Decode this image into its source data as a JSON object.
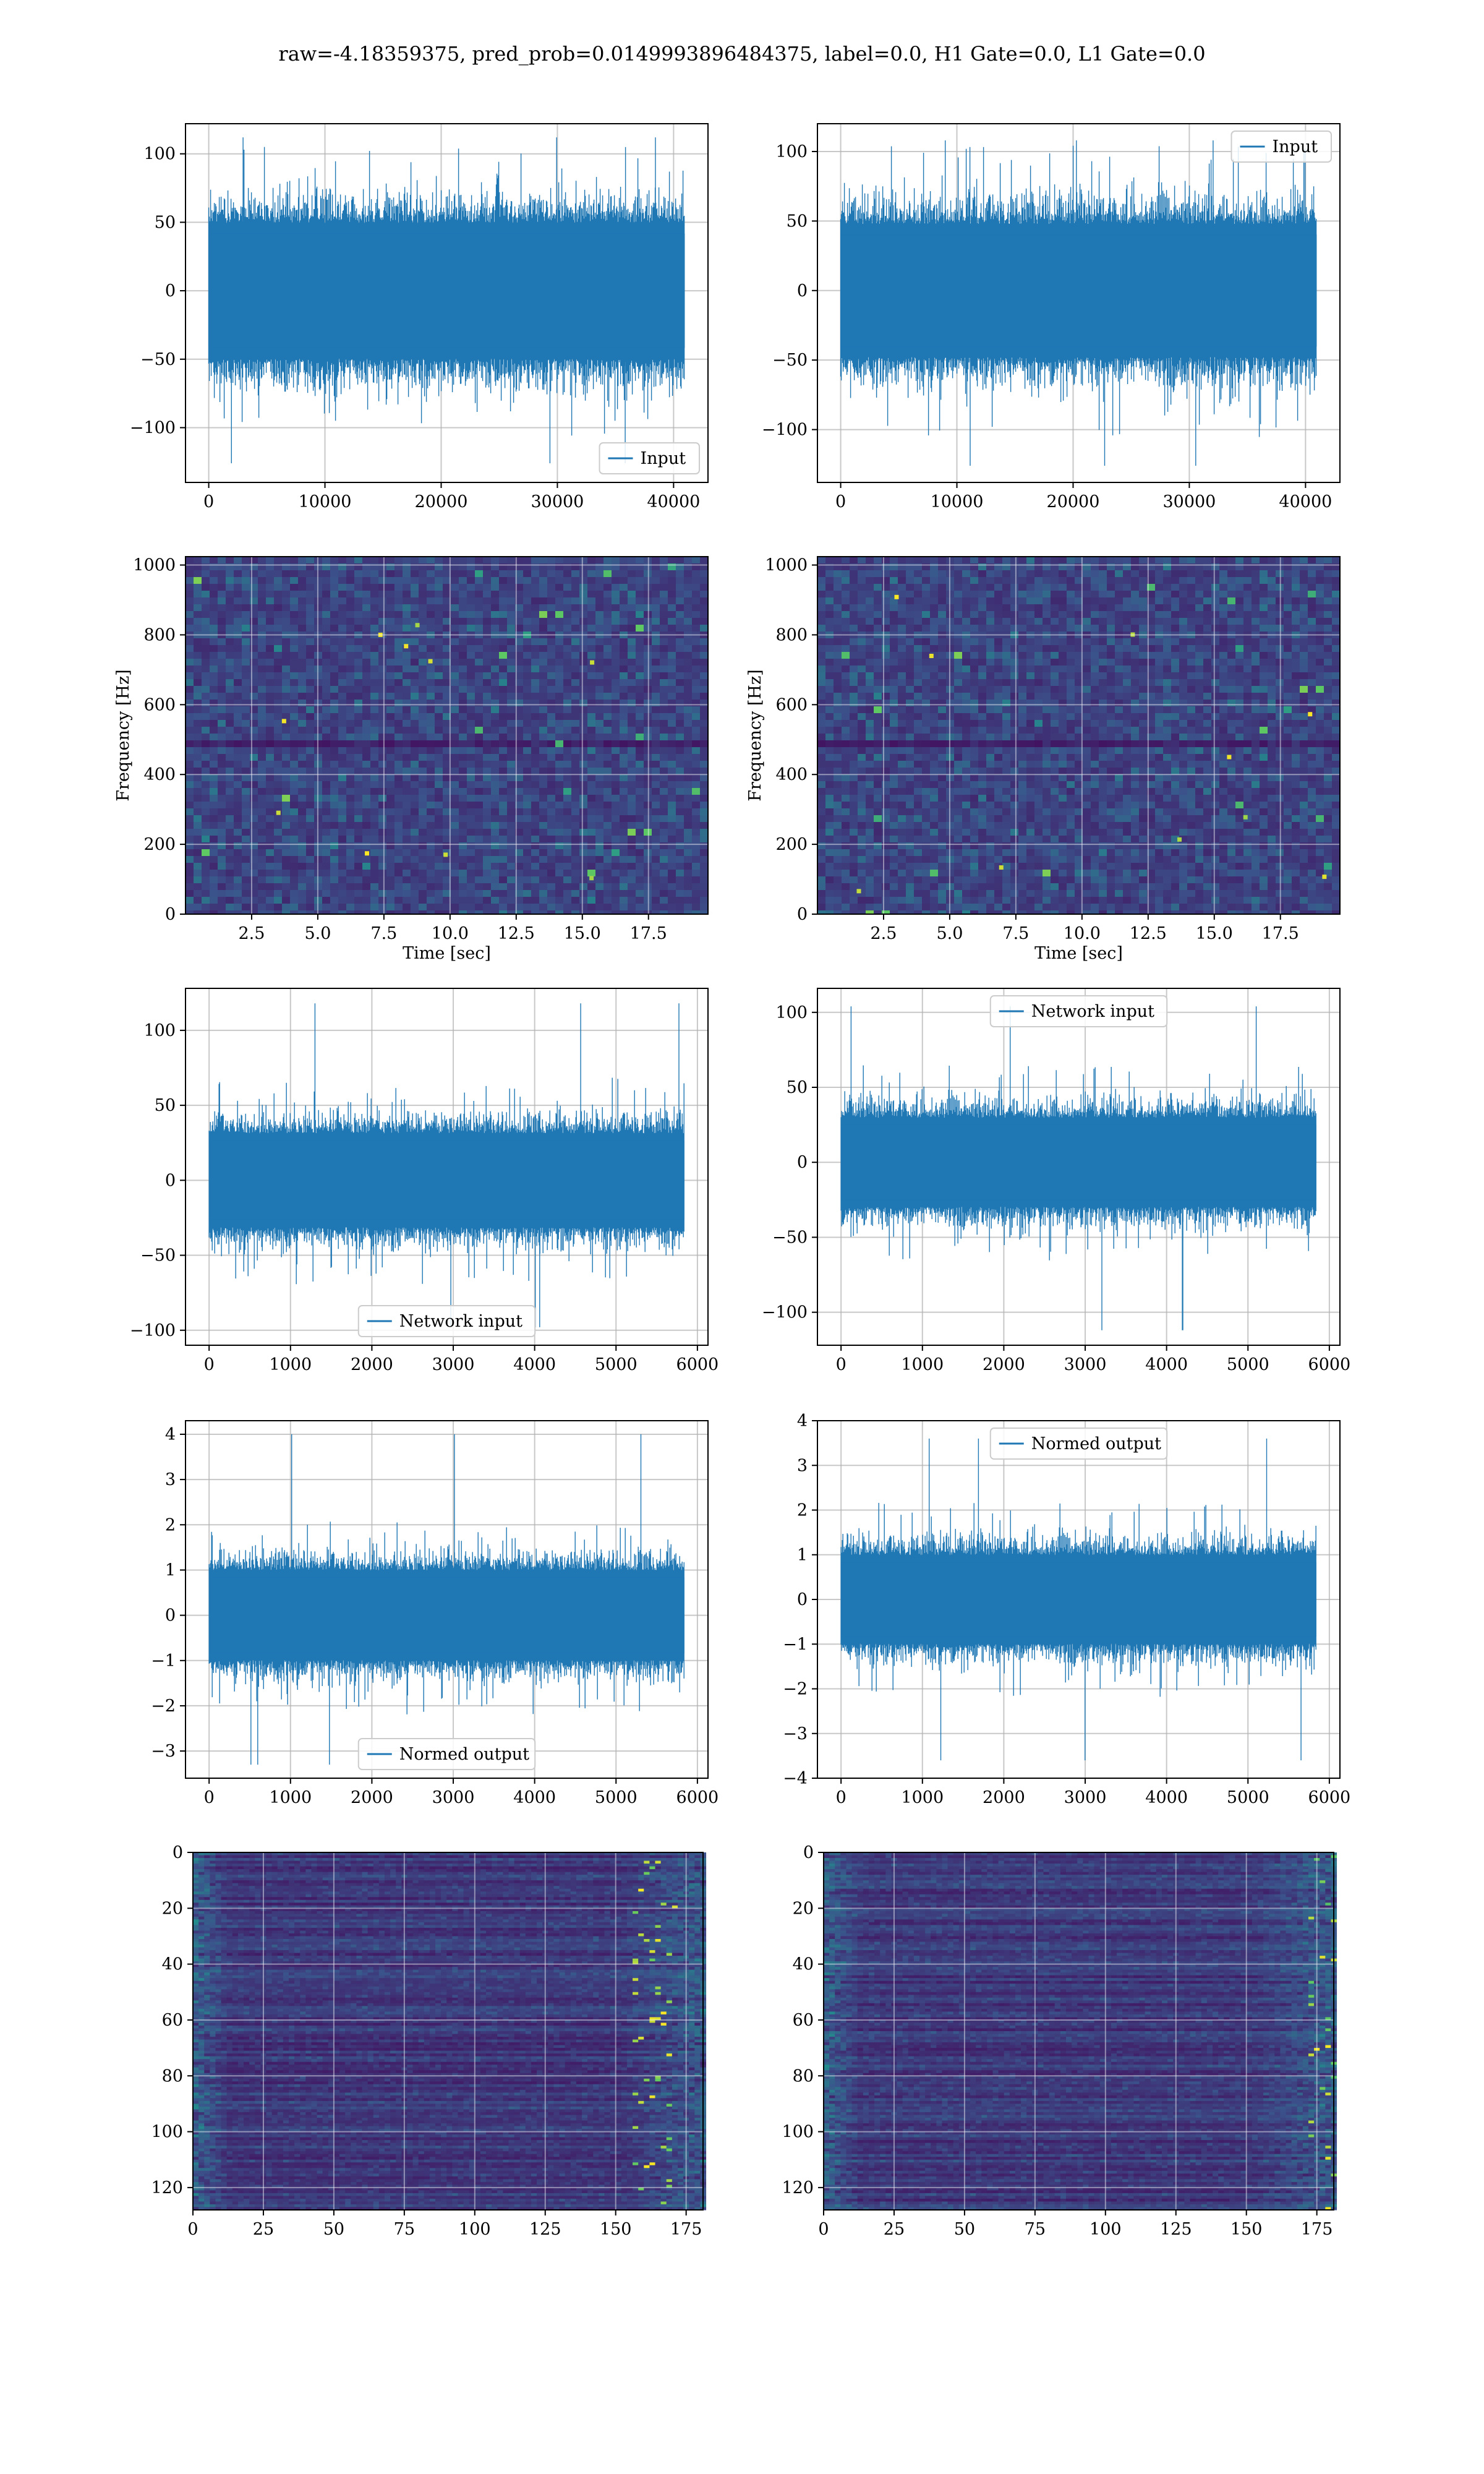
{
  "title": "raw=-4.18359375, pred_prob=0.0149993896484375, label=0.0, H1 Gate=0.0, L1 Gate=0.0",
  "colors": {
    "line": "#1f77b4",
    "grid": "#b0b0b0",
    "viridis_dark": "#440154",
    "viridis_mid": "#3b528b",
    "viridis_teal": "#21918c",
    "viridis_bright": "#fde725"
  },
  "chart_data": [
    {
      "id": "h1-input",
      "type": "line",
      "legend": "Input",
      "legend_position": "lower-right",
      "grid": true,
      "xlim": [
        -2000,
        42960
      ],
      "ylim": [
        -140,
        122
      ],
      "xticks": [
        0,
        10000,
        20000,
        30000,
        40000
      ],
      "xtick_labels": [
        "0",
        "10000",
        "20000",
        "30000",
        "40000"
      ],
      "yticks": [
        -100,
        -50,
        0,
        50,
        100
      ],
      "ytick_labels": [
        "−100",
        "−50",
        "0",
        "50",
        "100"
      ],
      "series": [
        {
          "x_range": [
            0,
            40960
          ],
          "envelope": [
            -60,
            60
          ],
          "peak_max": 112,
          "peak_min": -126
        }
      ]
    },
    {
      "id": "l1-input",
      "type": "line",
      "legend": "Input",
      "legend_position": "upper-right",
      "grid": true,
      "xlim": [
        -2000,
        42960
      ],
      "ylim": [
        -138,
        120
      ],
      "xticks": [
        0,
        10000,
        20000,
        30000,
        40000
      ],
      "xtick_labels": [
        "0",
        "10000",
        "20000",
        "30000",
        "40000"
      ],
      "yticks": [
        -100,
        -50,
        0,
        50,
        100
      ],
      "ytick_labels": [
        "−100",
        "−50",
        "0",
        "50",
        "100"
      ],
      "series": [
        {
          "x_range": [
            0,
            40960
          ],
          "envelope": [
            -58,
            58
          ],
          "peak_max": 108,
          "peak_min": -126
        }
      ]
    },
    {
      "id": "h1-spectrogram",
      "type": "heatmap",
      "grid": true,
      "colormap": "viridis",
      "xlabel": "Time [sec]",
      "ylabel": "Frequency [Hz]",
      "xlim": [
        0,
        19.75
      ],
      "ylim": [
        0,
        1024
      ],
      "xticks": [
        2.5,
        5.0,
        7.5,
        10.0,
        12.5,
        15.0,
        17.5
      ],
      "xtick_labels": [
        "2.5",
        "5.0",
        "7.5",
        "10.0",
        "12.5",
        "15.0",
        "17.5"
      ],
      "yticks": [
        0,
        200,
        400,
        600,
        800,
        1000
      ],
      "ytick_labels": [
        "0",
        "200",
        "400",
        "600",
        "800",
        "1000"
      ]
    },
    {
      "id": "l1-spectrogram",
      "type": "heatmap",
      "grid": true,
      "colormap": "viridis",
      "xlabel": "Time [sec]",
      "ylabel": "Frequency [Hz]",
      "xlim": [
        0,
        19.75
      ],
      "ylim": [
        0,
        1024
      ],
      "xticks": [
        2.5,
        5.0,
        7.5,
        10.0,
        12.5,
        15.0,
        17.5
      ],
      "xtick_labels": [
        "2.5",
        "5.0",
        "7.5",
        "10.0",
        "12.5",
        "15.0",
        "17.5"
      ],
      "yticks": [
        0,
        200,
        400,
        600,
        800,
        1000
      ],
      "ytick_labels": [
        "0",
        "200",
        "400",
        "600",
        "800",
        "1000"
      ]
    },
    {
      "id": "h1-network-input",
      "type": "line",
      "legend": "Network input",
      "legend_position": "lower-center",
      "grid": true,
      "xlim": [
        -290,
        6130
      ],
      "ylim": [
        -110,
        128
      ],
      "xticks": [
        0,
        1000,
        2000,
        3000,
        4000,
        5000,
        6000
      ],
      "xtick_labels": [
        "0",
        "1000",
        "2000",
        "3000",
        "4000",
        "5000",
        "6000"
      ],
      "yticks": [
        -100,
        -50,
        0,
        50,
        100
      ],
      "ytick_labels": [
        "−100",
        "−50",
        "0",
        "50",
        "100"
      ],
      "series": [
        {
          "x_range": [
            0,
            5840
          ],
          "envelope": [
            -38,
            38
          ],
          "peak_max": 118,
          "peak_min": -98
        }
      ]
    },
    {
      "id": "l1-network-input",
      "type": "line",
      "legend": "Network input",
      "legend_position": "upper-center",
      "grid": true,
      "xlim": [
        -290,
        6130
      ],
      "ylim": [
        -122,
        116
      ],
      "xticks": [
        0,
        1000,
        2000,
        3000,
        4000,
        5000,
        6000
      ],
      "xtick_labels": [
        "0",
        "1000",
        "2000",
        "3000",
        "4000",
        "5000",
        "6000"
      ],
      "yticks": [
        -100,
        -50,
        0,
        50,
        100
      ],
      "ytick_labels": [
        "−100",
        "−50",
        "0",
        "50",
        "100"
      ],
      "series": [
        {
          "x_range": [
            0,
            5840
          ],
          "envelope": [
            -36,
            36
          ],
          "peak_max": 104,
          "peak_min": -112
        }
      ]
    },
    {
      "id": "h1-normed-output",
      "type": "line",
      "legend": "Normed output",
      "legend_position": "lower-center",
      "grid": true,
      "xlim": [
        -290,
        6130
      ],
      "ylim": [
        -3.6,
        4.3
      ],
      "xticks": [
        0,
        1000,
        2000,
        3000,
        4000,
        5000,
        6000
      ],
      "xtick_labels": [
        "0",
        "1000",
        "2000",
        "3000",
        "4000",
        "5000",
        "6000"
      ],
      "yticks": [
        -3,
        -2,
        -1,
        0,
        1,
        2,
        3,
        4
      ],
      "ytick_labels": [
        "−3",
        "−2",
        "−1",
        "0",
        "1",
        "2",
        "3",
        "4"
      ],
      "series": [
        {
          "x_range": [
            0,
            5840
          ],
          "envelope": [
            -1.2,
            1.2
          ],
          "peak_max": 4.0,
          "peak_min": -3.3
        }
      ]
    },
    {
      "id": "l1-normed-output",
      "type": "line",
      "legend": "Normed output",
      "legend_position": "upper-center",
      "grid": true,
      "xlim": [
        -290,
        6130
      ],
      "ylim": [
        -4.0,
        4.0
      ],
      "xticks": [
        0,
        1000,
        2000,
        3000,
        4000,
        5000,
        6000
      ],
      "xtick_labels": [
        "0",
        "1000",
        "2000",
        "3000",
        "4000",
        "5000",
        "6000"
      ],
      "yticks": [
        -4,
        -3,
        -2,
        -1,
        0,
        1,
        2,
        3,
        4
      ],
      "ytick_labels": [
        "−4",
        "−3",
        "−2",
        "−1",
        "0",
        "1",
        "2",
        "3",
        "4"
      ],
      "series": [
        {
          "x_range": [
            0,
            5840
          ],
          "envelope": [
            -1.2,
            1.2
          ],
          "peak_max": 3.6,
          "peak_min": -3.6
        }
      ]
    },
    {
      "id": "h1-feature-map",
      "type": "heatmap",
      "grid": true,
      "colormap": "viridis",
      "xlim": [
        0,
        181
      ],
      "ylim": [
        128,
        0
      ],
      "xticks": [
        0,
        25,
        50,
        75,
        100,
        125,
        150,
        175
      ],
      "xtick_labels": [
        "0",
        "25",
        "50",
        "75",
        "100",
        "125",
        "150",
        "175"
      ],
      "yticks": [
        0,
        20,
        40,
        60,
        80,
        100,
        120
      ],
      "ytick_labels": [
        "0",
        "20",
        "40",
        "60",
        "80",
        "100",
        "120"
      ]
    },
    {
      "id": "l1-feature-map",
      "type": "heatmap",
      "grid": true,
      "colormap": "viridis",
      "xlim": [
        0,
        181
      ],
      "ylim": [
        128,
        0
      ],
      "xticks": [
        0,
        25,
        50,
        75,
        100,
        125,
        150,
        175
      ],
      "xtick_labels": [
        "0",
        "25",
        "50",
        "75",
        "100",
        "125",
        "150",
        "175"
      ],
      "yticks": [
        0,
        20,
        40,
        60,
        80,
        100,
        120
      ],
      "ytick_labels": [
        "0",
        "20",
        "40",
        "60",
        "80",
        "100",
        "120"
      ]
    }
  ]
}
